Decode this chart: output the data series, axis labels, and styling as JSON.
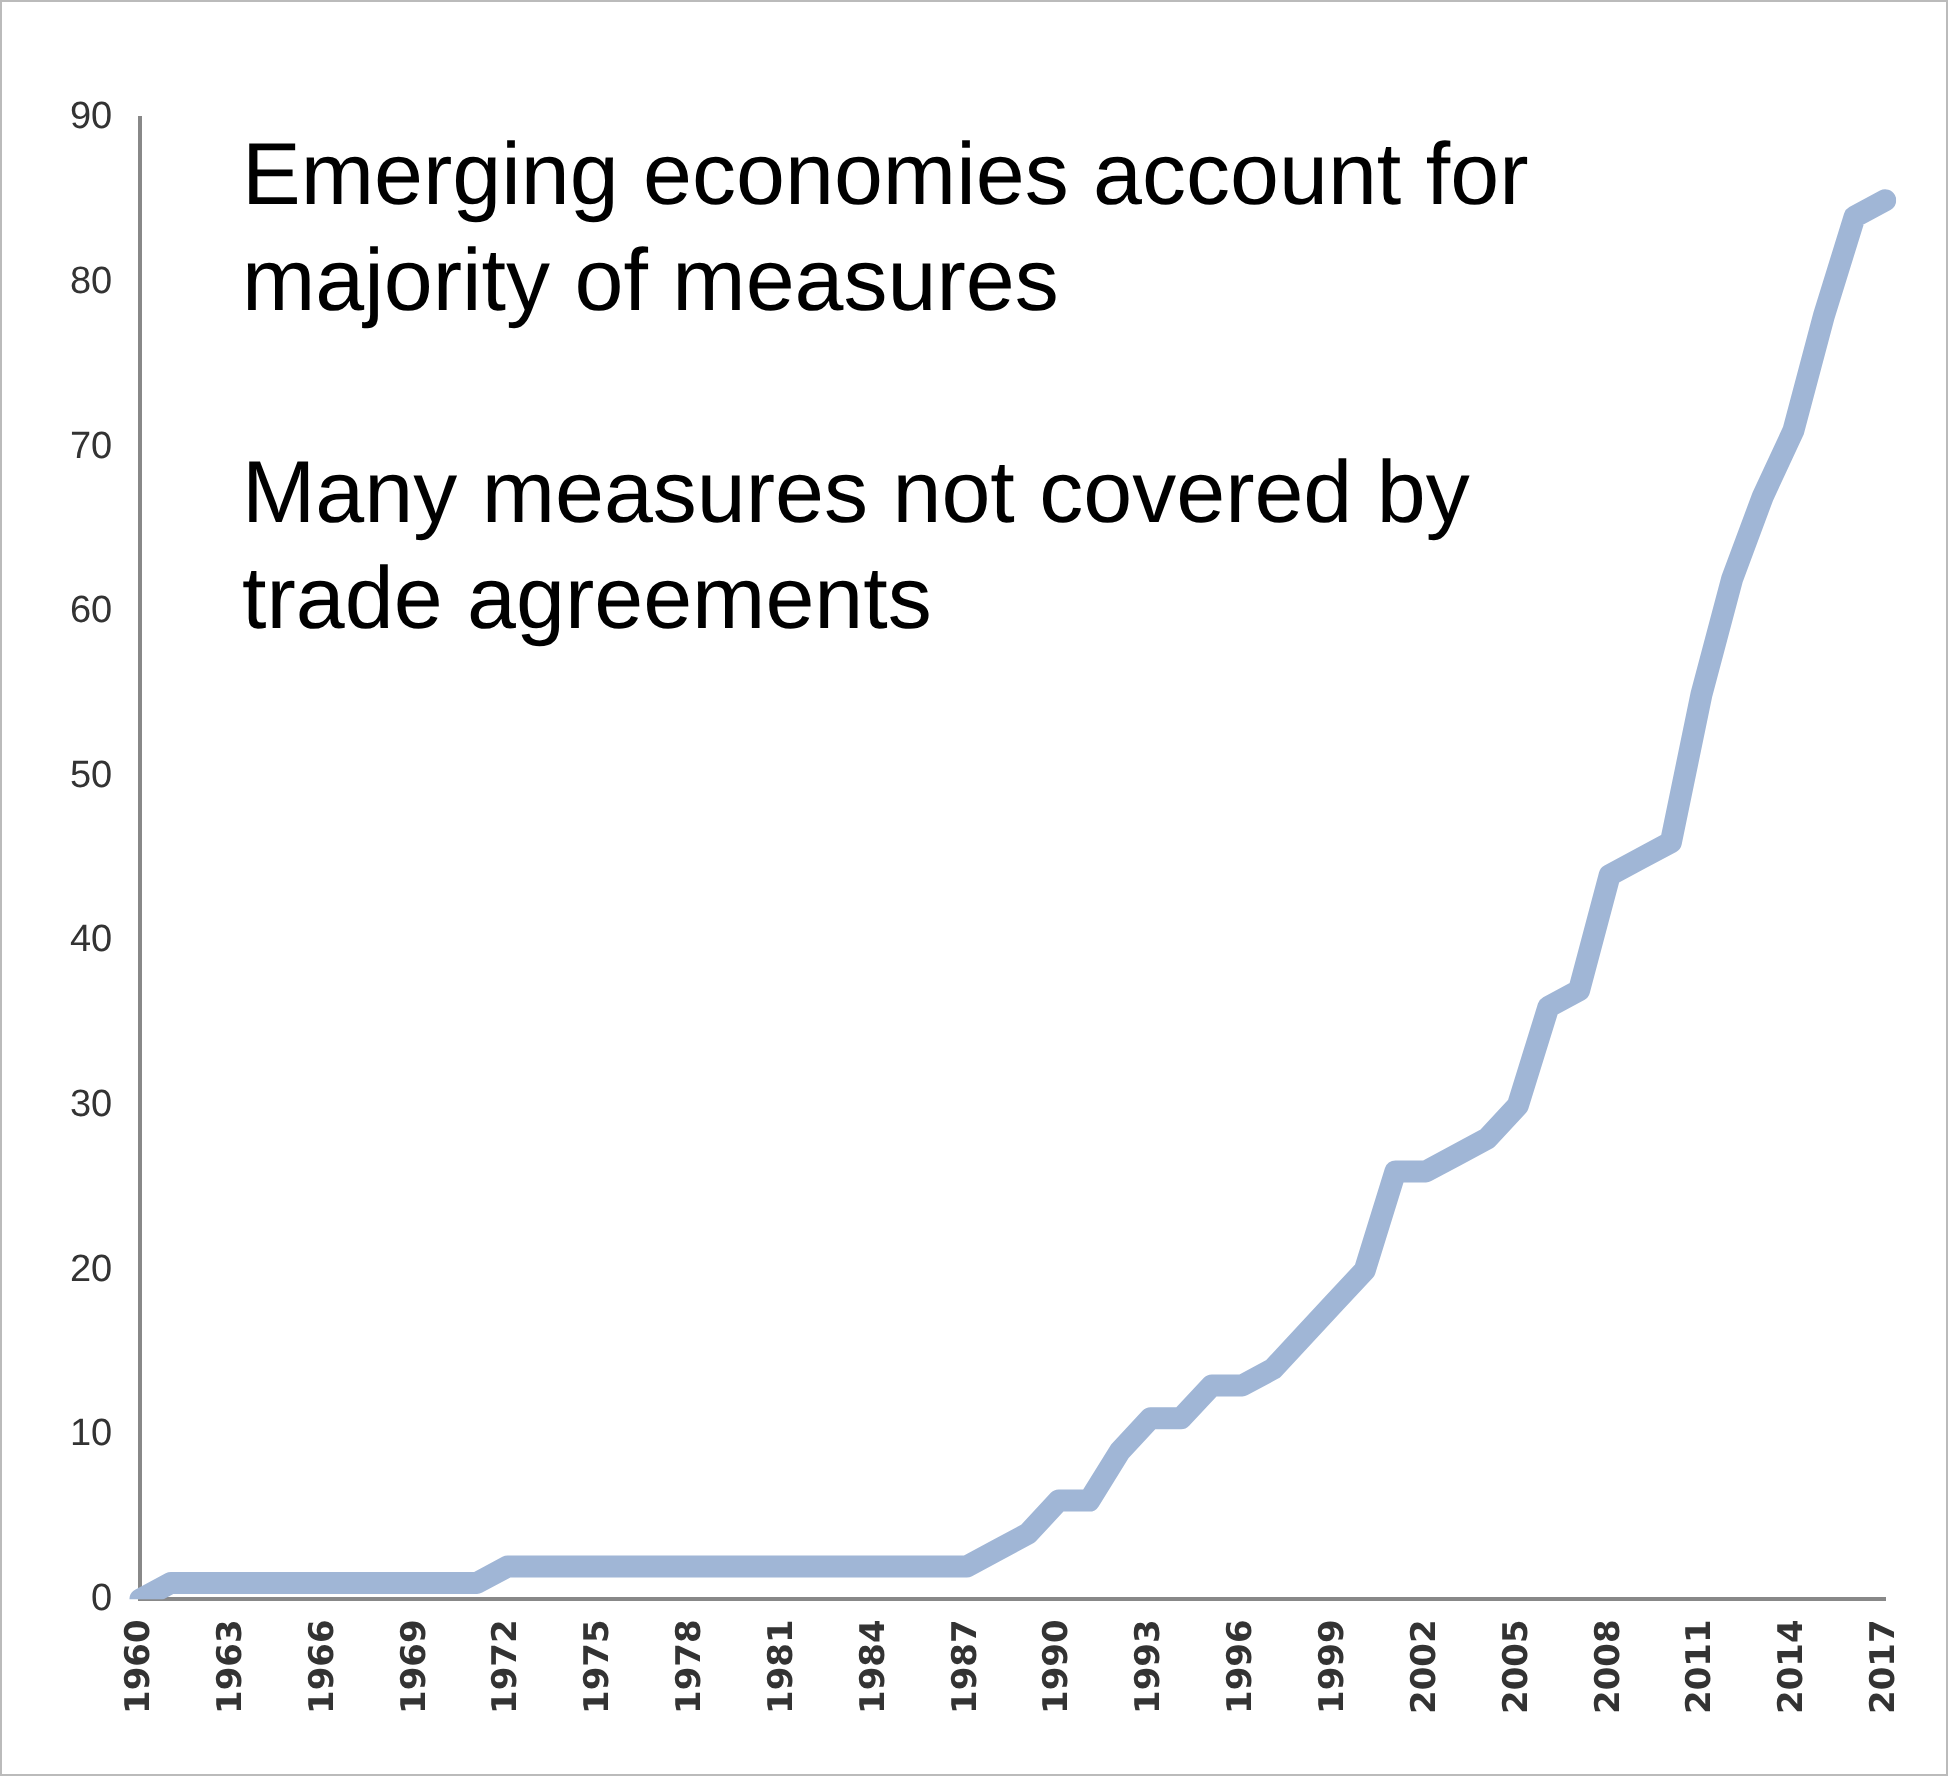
{
  "chart_data": {
    "type": "line",
    "categories": [
      "1960",
      null,
      null,
      "1963",
      null,
      null,
      "1966",
      null,
      null,
      "1969",
      null,
      null,
      "1972",
      null,
      null,
      "1975",
      null,
      null,
      "1978",
      null,
      null,
      "1981",
      null,
      null,
      "1984",
      null,
      null,
      "1987",
      null,
      null,
      "1990",
      null,
      null,
      "1993",
      null,
      null,
      "1996",
      null,
      null,
      "1999",
      null,
      null,
      "2002",
      null,
      null,
      "2005",
      null,
      null,
      "2008",
      null,
      null,
      "2011",
      null,
      null,
      "2014",
      null,
      null,
      "2017"
    ],
    "series": [
      {
        "color": "#a0b6d6",
        "values": [
          0,
          1,
          1,
          1,
          1,
          1,
          1,
          1,
          1,
          1,
          1,
          1,
          2,
          2,
          2,
          2,
          2,
          2,
          2,
          2,
          2,
          2,
          2,
          2,
          2,
          2,
          2,
          2,
          3,
          4,
          6,
          6,
          9,
          11,
          11,
          13,
          13,
          14,
          16,
          18,
          20,
          26,
          26,
          27,
          28,
          30,
          36,
          37,
          44,
          45,
          46,
          55,
          62,
          67,
          71,
          78,
          84,
          85
        ]
      }
    ],
    "ylim": [
      0,
      90
    ],
    "yticks": [
      0,
      10,
      20,
      30,
      40,
      50,
      60,
      70,
      80,
      90
    ],
    "grid": false,
    "legend": false,
    "marker": "none",
    "line_style": "solid",
    "annotations": [
      "Emerging economies account for majority of measures",
      "Many measures not covered by trade agreements"
    ]
  }
}
